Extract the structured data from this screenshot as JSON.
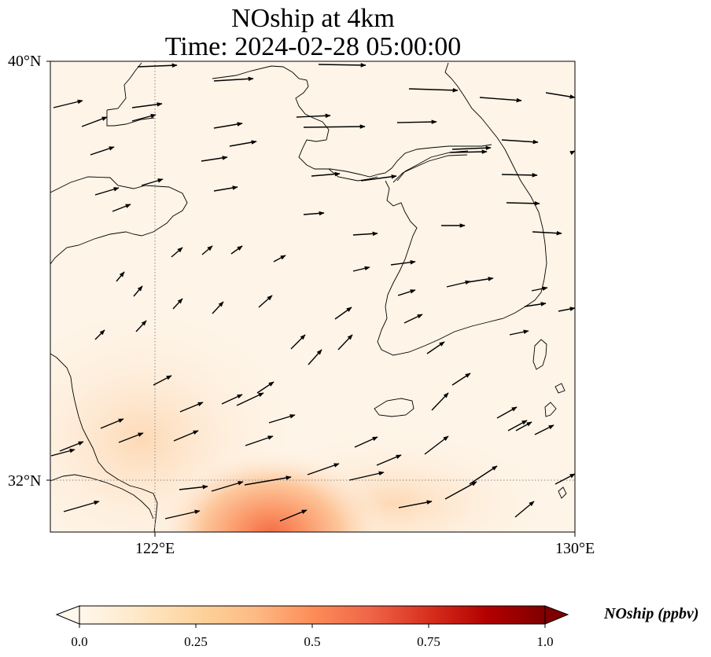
{
  "title": {
    "line1": "NOship at 4km",
    "line2": "Time: 2024-02-28 05:00:00"
  },
  "axes": {
    "lat_labels": [
      "40°N",
      "32°N"
    ],
    "lon_labels": [
      "122°E",
      "130°E"
    ],
    "gridlines": "dotted",
    "lon_range": [
      120,
      130
    ],
    "lat_range": [
      31,
      40
    ]
  },
  "colorbar": {
    "label": "NOship (ppbv)",
    "ticks": [
      "0.0",
      "0.25",
      "0.5",
      "0.75",
      "1.0"
    ],
    "range": [
      0.0,
      1.0
    ],
    "colormap": "OrRd",
    "extend": "both",
    "colors": [
      "#fff7ec",
      "#fee8c8",
      "#fdd49e",
      "#fdbb84",
      "#fc8d59",
      "#ef6548",
      "#d7301f",
      "#b30000",
      "#7f0000"
    ]
  },
  "field": {
    "background": "#fef4e7",
    "plume_center_color": "#f7764e",
    "plume_mid_color": "#fdbf93",
    "plume_edge_color": "#fde4cc"
  },
  "wind_vectors": {
    "direction": "predominantly eastward to north-eastward",
    "color": "#000000"
  }
}
